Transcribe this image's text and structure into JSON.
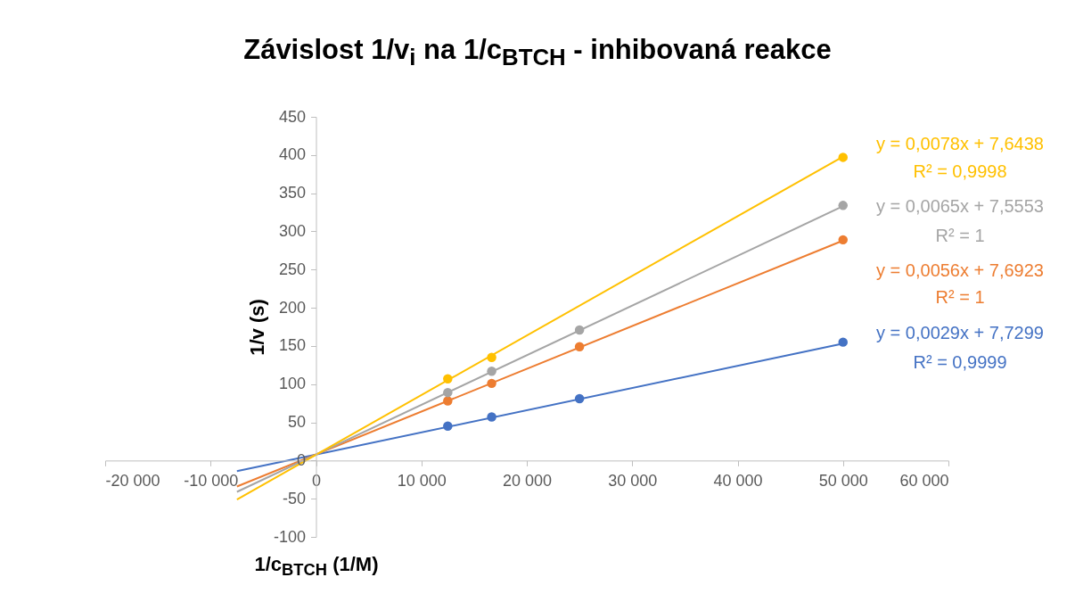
{
  "chart_data": {
    "type": "scatter",
    "title": "Závislost 1/v$_{i}$ na 1/c$_{BTCH}$ - inhibovaná reakce",
    "xlabel": "1/c$_{BTCH}$ (1/M)",
    "ylabel": "1/v (s)",
    "xlim": [
      -20000,
      60000
    ],
    "xticks": [
      {
        "value": -20000,
        "label": "-20 000"
      },
      {
        "value": -10000,
        "label": "-10 000"
      },
      0,
      {
        "value": 10000,
        "label": "10 000"
      },
      {
        "value": 20000,
        "label": "20 000"
      },
      {
        "value": 30000,
        "label": "30 000"
      },
      {
        "value": 40000,
        "label": "40 000"
      },
      {
        "value": 50000,
        "label": "50 000"
      },
      {
        "value": 60000,
        "label": "60 000"
      }
    ],
    "ylim": [
      -100,
      450
    ],
    "yticks": [
      -100,
      -50,
      0,
      50,
      100,
      150,
      200,
      250,
      300,
      350,
      400,
      450
    ],
    "grid": false,
    "legend": false,
    "marker": "circle",
    "line_style": "solid",
    "series": [
      {
        "color": "#4472c4",
        "x": [
          12500,
          16667,
          25000,
          50000
        ],
        "values": [
          45,
          57,
          81,
          155
        ]
      },
      {
        "color": "#ed7d31",
        "x": [
          12500,
          16667,
          25000,
          50000
        ],
        "values": [
          78,
          101,
          149,
          289
        ]
      },
      {
        "color": "#a5a5a5",
        "x": [
          12500,
          16667,
          25000,
          50000
        ],
        "values": [
          89,
          117,
          171,
          334
        ]
      },
      {
        "color": "#ffc000",
        "x": [
          12500,
          16667,
          50000
        ],
        "values": [
          107,
          135,
          397
        ]
      },
      {
        "type": "line",
        "marker": "none",
        "color": "#4472c4",
        "x": [
          -7500,
          50000
        ],
        "values": [
          -14,
          153
        ]
      },
      {
        "type": "line",
        "marker": "none",
        "color": "#ed7d31",
        "x": [
          -7500,
          50000
        ],
        "values": [
          -34,
          288
        ]
      },
      {
        "type": "line",
        "marker": "none",
        "color": "#a5a5a5",
        "x": [
          -7500,
          50000
        ],
        "values": [
          -41,
          333
        ]
      },
      {
        "type": "line",
        "marker": "none",
        "color": "#ffc000",
        "x": [
          -7500,
          50000
        ],
        "values": [
          -51,
          398
        ]
      }
    ],
    "annotations": [
      "y = 0,0029x + 7,7299",
      "R² = 0,9999",
      "y = 0,0056x + 7,6923",
      "R² = 1",
      "y = 0,0065x + 7,5553",
      "R² = 1",
      "y = 0,0078x + 7,6438",
      "R² = 0,9998"
    ]
  }
}
